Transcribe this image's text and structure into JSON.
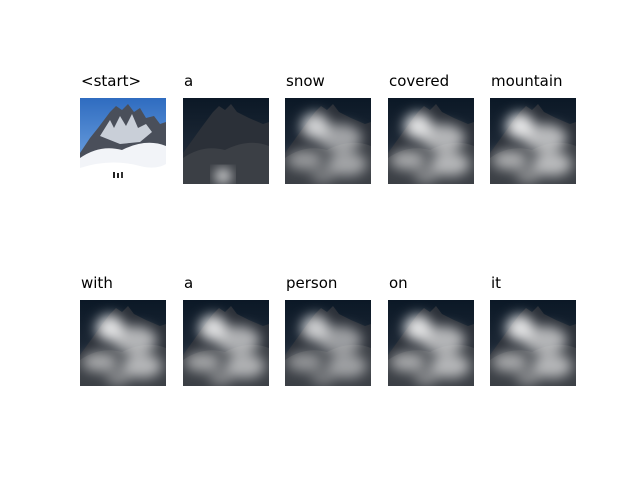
{
  "figure": {
    "tokens": [
      "<start>",
      "a",
      "snow",
      "covered",
      "mountain",
      "with",
      "a",
      "person",
      "on",
      "it"
    ],
    "attention_strength": [
      1.0,
      0.15,
      0.55,
      0.75,
      0.8,
      0.75,
      0.7,
      0.5,
      0.75,
      0.75
    ],
    "original_image_label": "<start>"
  },
  "colors": {
    "sky": "#3a78c8",
    "snow": "#f2f4f8",
    "rock": "#4a4f5a",
    "dark_sky": "#0b1a2a"
  }
}
